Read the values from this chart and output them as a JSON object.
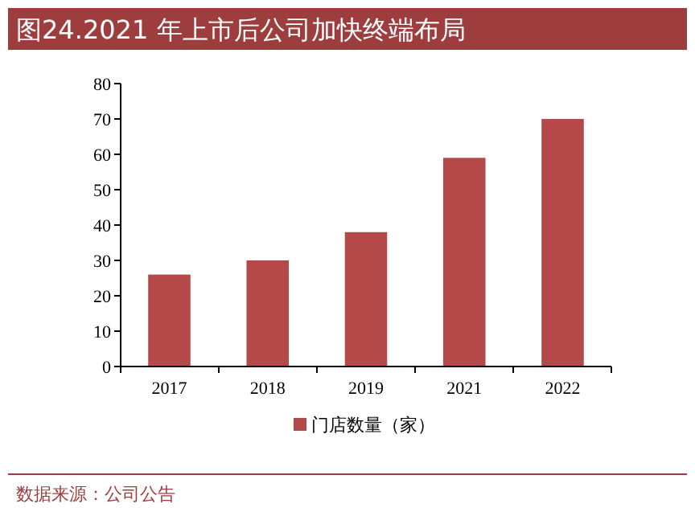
{
  "chart_data": {
    "type": "bar",
    "title": "图24.2021 年上市后公司加快终端布局",
    "categories": [
      "2017",
      "2018",
      "2019",
      "2021",
      "2022"
    ],
    "series": [
      {
        "name": "门店数量（家）",
        "color": "#b5494a",
        "values": [
          26,
          30,
          38,
          59,
          70
        ]
      }
    ],
    "ylim": [
      0,
      80
    ],
    "yticks": [
      0,
      10,
      20,
      30,
      40,
      50,
      60,
      70,
      80
    ],
    "grid": false,
    "legend": "bottom",
    "annotations": [
      "数据来源：公司公告"
    ]
  }
}
